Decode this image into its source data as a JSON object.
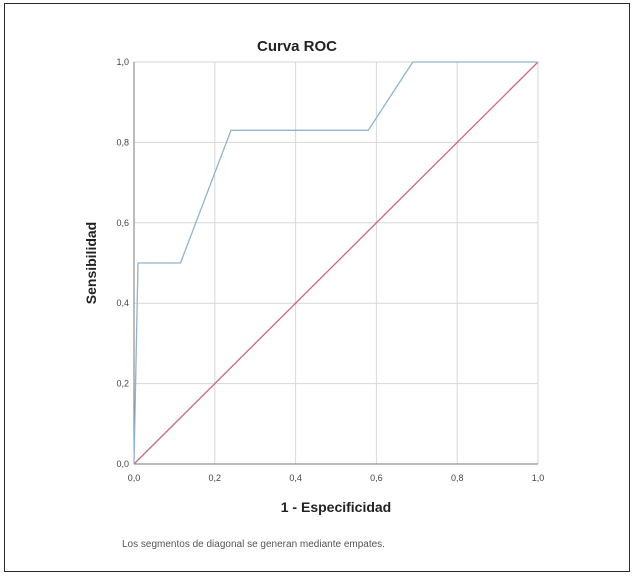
{
  "chart_data": {
    "type": "line",
    "title": "Curva ROC",
    "xlabel": "1 - Especificidad",
    "ylabel": "Sensibilidad",
    "xlim": [
      0,
      1
    ],
    "ylim": [
      0,
      1
    ],
    "x_ticks": [
      "0,0",
      "0,2",
      "0,4",
      "0,6",
      "0,8",
      "1,0"
    ],
    "y_ticks": [
      "0,0",
      "0,2",
      "0,4",
      "0,6",
      "0,8",
      "1,0"
    ],
    "grid": true,
    "series": [
      {
        "color": "#8fb3d0",
        "x": [
          0,
          0.01,
          0.01,
          0.115,
          0.24,
          0.24,
          0.58,
          0.69,
          1.0
        ],
        "y": [
          0,
          0.5,
          0.5,
          0.5,
          0.83,
          0.83,
          0.83,
          1.0,
          1.0
        ]
      },
      {
        "color": "#c96a7e",
        "x": [
          0,
          1
        ],
        "y": [
          0,
          1
        ]
      }
    ],
    "footnote": "Los segmentos de diagonal se generan mediante empates."
  },
  "colors": {
    "grid": "#d7d7d7",
    "axis": "#7a7a7a"
  }
}
